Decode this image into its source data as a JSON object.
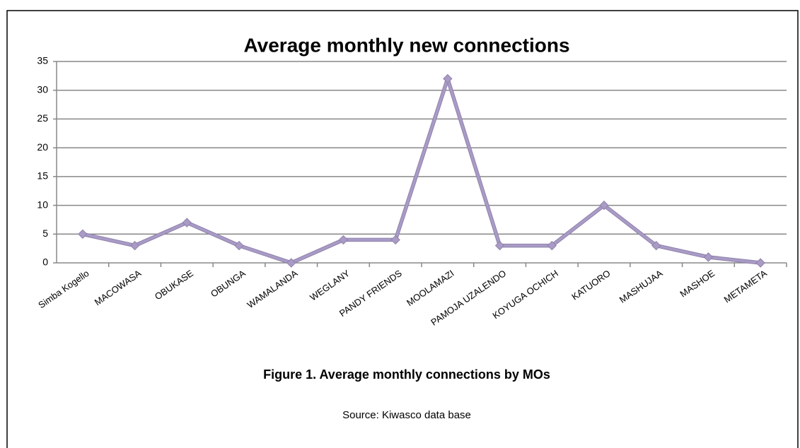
{
  "chart_data": {
    "type": "line",
    "title": "Average monthly new connections",
    "categories": [
      "Simba Kogello",
      "MACOWASA",
      "OBUKASE",
      "OBUNGA",
      "WAMALANDA",
      "WEGLANY",
      "PANDY FRIENDS",
      "MOOLAMAZI",
      "PAMOJA UZALENDO",
      "KOYUGA OCHICH",
      "KATUORO",
      "MASHUJAA",
      "MASHOE",
      "METAMETA"
    ],
    "values": [
      5,
      3,
      7,
      3,
      0,
      4,
      4,
      32,
      3,
      3,
      10,
      3,
      1,
      0
    ],
    "color": "#a99bc6",
    "ylim": [
      0,
      35
    ],
    "yticks": [
      0,
      5,
      10,
      15,
      20,
      25,
      30,
      35
    ],
    "grid": true,
    "caption": "Figure 1. Average monthly connections by MOs",
    "source": "Source: Kiwasco data base"
  }
}
